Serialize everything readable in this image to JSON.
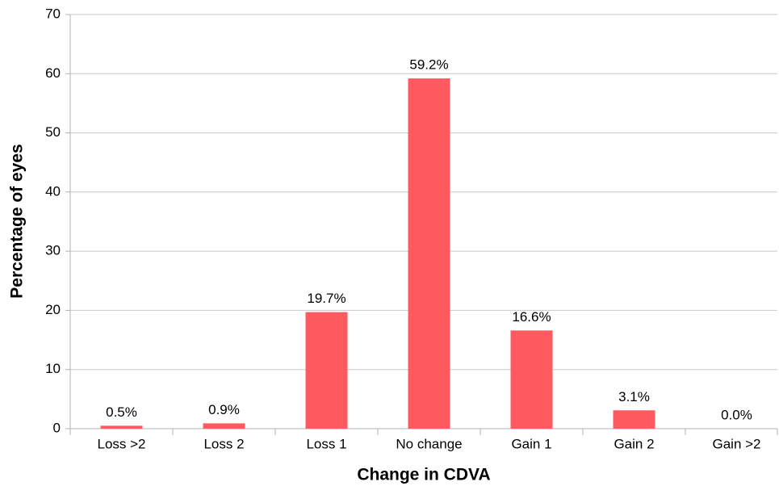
{
  "chart_data": {
    "type": "bar",
    "categories": [
      "Loss >2",
      "Loss 2",
      "Loss 1",
      "No change",
      "Gain 1",
      "Gain 2",
      "Gain >2"
    ],
    "values": [
      0.5,
      0.9,
      19.7,
      59.2,
      16.6,
      3.1,
      0.0
    ],
    "value_labels": [
      "0.5%",
      "0.9%",
      "19.7%",
      "59.2%",
      "16.6%",
      "3.1%",
      "0.0%"
    ],
    "color": "#ff5a5f",
    "xlabel": "Change in CDVA",
    "ylabel": "Percentage of eyes",
    "ylim": [
      0,
      70
    ],
    "yticks": [
      0,
      10,
      20,
      30,
      40,
      50,
      60,
      70
    ],
    "grid": true
  }
}
